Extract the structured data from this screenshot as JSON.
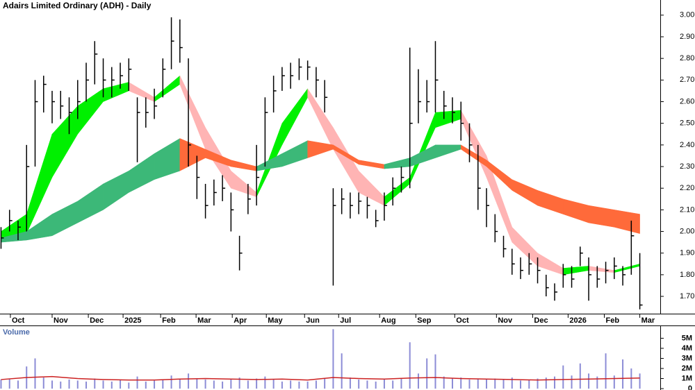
{
  "chart_data": [
    {
      "type": "ohlc",
      "title": "Adairs Limited Ordinary (ADH) - Daily",
      "x": [
        0,
        1,
        2,
        3,
        4,
        5,
        6,
        7,
        8,
        9,
        10,
        11,
        12,
        13,
        14,
        15,
        16,
        17,
        18,
        19,
        20,
        21,
        22,
        23,
        24,
        25,
        26,
        27,
        28,
        29,
        30,
        31,
        32,
        33,
        34,
        35,
        36,
        37,
        38,
        39,
        40,
        41,
        42,
        43,
        44,
        45,
        46,
        47,
        48,
        49,
        50,
        51,
        52,
        53,
        54,
        55,
        56,
        57,
        58,
        59,
        60,
        61,
        62,
        63,
        64,
        65,
        66,
        67,
        68,
        69,
        70,
        71,
        72,
        73,
        74,
        75
      ],
      "high": [
        2.02,
        2.1,
        2.05,
        2.4,
        2.7,
        2.72,
        2.65,
        2.65,
        2.62,
        2.7,
        2.78,
        2.88,
        2.8,
        2.76,
        2.78,
        2.8,
        2.62,
        2.62,
        2.66,
        2.8,
        2.99,
        2.98,
        2.8,
        2.35,
        2.22,
        2.24,
        2.26,
        2.18,
        1.98,
        2.22,
        2.4,
        2.62,
        2.72,
        2.76,
        2.78,
        2.8,
        2.79,
        2.76,
        2.7,
        2.2,
        2.2,
        2.18,
        2.18,
        2.16,
        2.1,
        2.18,
        2.25,
        2.3,
        2.85,
        2.75,
        2.7,
        2.88,
        2.65,
        2.62,
        2.6,
        2.5,
        2.4,
        2.2,
        2.08,
        1.98,
        1.92,
        1.88,
        1.9,
        1.88,
        1.8,
        1.76,
        1.85,
        1.84,
        1.93,
        1.88,
        1.84,
        1.86,
        1.88,
        1.84,
        2.05,
        1.9
      ],
      "low": [
        1.92,
        2.0,
        1.96,
        2.0,
        2.3,
        2.55,
        2.5,
        2.52,
        2.45,
        2.52,
        2.6,
        2.68,
        2.62,
        2.62,
        2.66,
        2.65,
        2.32,
        2.48,
        2.52,
        2.62,
        2.75,
        2.78,
        2.3,
        2.15,
        2.06,
        2.12,
        2.14,
        2.0,
        1.82,
        2.08,
        2.12,
        2.3,
        2.55,
        2.65,
        2.66,
        2.7,
        2.7,
        2.62,
        2.55,
        1.75,
        2.08,
        2.06,
        2.08,
        2.06,
        2.02,
        2.05,
        2.12,
        2.18,
        2.2,
        2.5,
        2.55,
        2.55,
        2.52,
        2.5,
        2.42,
        2.32,
        2.1,
        2.02,
        1.95,
        1.88,
        1.8,
        1.78,
        1.8,
        1.76,
        1.7,
        1.68,
        1.74,
        1.74,
        1.84,
        1.68,
        1.74,
        1.76,
        1.78,
        1.75,
        1.8,
        1.64
      ],
      "close": [
        1.97,
        2.05,
        2.02,
        2.3,
        2.6,
        2.68,
        2.6,
        2.58,
        2.55,
        2.6,
        2.7,
        2.82,
        2.7,
        2.7,
        2.72,
        2.75,
        2.55,
        2.55,
        2.58,
        2.75,
        2.88,
        2.85,
        2.4,
        2.25,
        2.12,
        2.18,
        2.2,
        2.1,
        1.9,
        2.15,
        2.25,
        2.55,
        2.65,
        2.72,
        2.72,
        2.76,
        2.76,
        2.7,
        2.62,
        2.12,
        2.15,
        2.12,
        2.14,
        2.12,
        2.05,
        2.12,
        2.2,
        2.25,
        2.5,
        2.6,
        2.6,
        2.7,
        2.58,
        2.55,
        2.5,
        2.4,
        2.2,
        2.12,
        2.0,
        1.92,
        1.85,
        1.82,
        1.85,
        1.82,
        1.74,
        1.72,
        1.8,
        1.78,
        1.9,
        1.8,
        1.78,
        1.82,
        1.84,
        1.8,
        1.98,
        1.66
      ],
      "color": "#000000",
      "bands": [
        {
          "x": [
            0,
            3,
            6,
            9,
            12,
            15,
            18,
            21,
            24,
            27,
            30,
            33,
            36,
            39,
            42,
            45,
            48,
            51,
            54,
            57,
            60,
            63,
            66,
            69,
            72,
            75
          ],
          "upper": [
            2.0,
            2.08,
            2.45,
            2.58,
            2.66,
            2.69,
            2.62,
            2.72,
            2.48,
            2.28,
            2.18,
            2.5,
            2.66,
            2.48,
            2.28,
            2.16,
            2.25,
            2.55,
            2.56,
            2.35,
            2.02,
            1.9,
            1.83,
            1.84,
            1.82,
            1.85
          ],
          "lower": [
            1.97,
            1.99,
            2.25,
            2.45,
            2.6,
            2.65,
            2.6,
            2.68,
            2.38,
            2.2,
            2.16,
            2.4,
            2.62,
            2.38,
            2.18,
            2.12,
            2.22,
            2.48,
            2.52,
            2.25,
            1.95,
            1.84,
            1.8,
            1.82,
            1.81,
            1.84
          ],
          "up_color": "#00f000",
          "down_color": "#ffb4b4"
        },
        {
          "x": [
            0,
            3,
            6,
            9,
            12,
            15,
            18,
            21,
            24,
            27,
            30,
            33,
            36,
            39,
            42,
            45,
            48,
            51,
            54,
            57,
            60,
            63,
            66,
            69,
            72,
            75
          ],
          "upper": [
            1.97,
            2.0,
            2.08,
            2.14,
            2.22,
            2.28,
            2.36,
            2.43,
            2.38,
            2.33,
            2.3,
            2.36,
            2.42,
            2.4,
            2.33,
            2.31,
            2.34,
            2.4,
            2.4,
            2.33,
            2.24,
            2.19,
            2.15,
            2.12,
            2.1,
            2.08
          ],
          "lower": [
            1.95,
            1.96,
            1.98,
            2.04,
            2.1,
            2.18,
            2.24,
            2.28,
            2.34,
            2.3,
            2.28,
            2.3,
            2.34,
            2.38,
            2.31,
            2.29,
            2.3,
            2.34,
            2.38,
            2.3,
            2.19,
            2.12,
            2.08,
            2.04,
            2.02,
            1.99
          ],
          "up_color": "#3cb878",
          "down_color": "#ff6a3a"
        }
      ],
      "xlim": [
        -0.12,
        77.4
      ],
      "ylim": [
        1.62,
        3.07
      ],
      "yticks": [
        {
          "value": 1.7,
          "label": "1.70"
        },
        {
          "value": 1.8,
          "label": "1.80"
        },
        {
          "value": 1.9,
          "label": "1.90"
        },
        {
          "value": 2.0,
          "label": "2.00"
        },
        {
          "value": 2.1,
          "label": "2.10"
        },
        {
          "value": 2.2,
          "label": "2.20"
        },
        {
          "value": 2.3,
          "label": "2.30"
        },
        {
          "value": 2.4,
          "label": "2.40"
        },
        {
          "value": 2.5,
          "label": "2.50"
        },
        {
          "value": 2.6,
          "label": "2.60"
        },
        {
          "value": 2.7,
          "label": "2.70"
        },
        {
          "value": 2.8,
          "label": "2.80"
        },
        {
          "value": 2.9,
          "label": "2.90"
        },
        {
          "value": 3.0,
          "label": "3.00"
        }
      ],
      "xticks": [
        {
          "value": 1.1,
          "label": "Oct"
        },
        {
          "value": 6.0,
          "label": "Nov"
        },
        {
          "value": 10.25,
          "label": "Dec"
        },
        {
          "value": 14.33,
          "label": "2025"
        },
        {
          "value": 18.74,
          "label": "Feb"
        },
        {
          "value": 22.9,
          "label": "Mar"
        },
        {
          "value": 27.15,
          "label": "Apr"
        },
        {
          "value": 31.15,
          "label": "May"
        },
        {
          "value": 35.64,
          "label": "Jun"
        },
        {
          "value": 39.64,
          "label": "Jul"
        },
        {
          "value": 44.45,
          "label": "Aug"
        },
        {
          "value": 48.7,
          "label": "Sep"
        },
        {
          "value": 53.27,
          "label": "Oct"
        },
        {
          "value": 58.17,
          "label": "Nov"
        },
        {
          "value": 62.42,
          "label": "Dec"
        },
        {
          "value": 66.58,
          "label": "2026"
        },
        {
          "value": 70.83,
          "label": "Feb"
        },
        {
          "value": 75.0,
          "label": "Mar"
        }
      ]
    },
    {
      "type": "volume",
      "title": "Volume",
      "x": [
        0,
        1,
        2,
        3,
        4,
        5,
        6,
        7,
        8,
        9,
        10,
        11,
        12,
        13,
        14,
        15,
        16,
        17,
        18,
        19,
        20,
        21,
        22,
        23,
        24,
        25,
        26,
        27,
        28,
        29,
        30,
        31,
        32,
        33,
        34,
        35,
        36,
        37,
        38,
        39,
        40,
        41,
        42,
        43,
        44,
        45,
        46,
        47,
        48,
        49,
        50,
        51,
        52,
        53,
        54,
        55,
        56,
        57,
        58,
        59,
        60,
        61,
        62,
        63,
        64,
        65,
        66,
        67,
        68,
        69,
        70,
        71,
        72,
        73,
        74,
        75
      ],
      "values": [
        900000,
        1000000,
        800000,
        2200000,
        3000000,
        1100000,
        800000,
        700000,
        900000,
        800000,
        700000,
        1000000,
        800000,
        700000,
        900000,
        600000,
        1200000,
        700000,
        800000,
        900000,
        1300000,
        1000000,
        1500000,
        1000000,
        900000,
        800000,
        700000,
        900000,
        1100000,
        800000,
        1000000,
        1200000,
        900000,
        700000,
        800000,
        700000,
        700000,
        800000,
        1000000,
        5900000,
        3500000,
        1100000,
        900000,
        800000,
        700000,
        900000,
        800000,
        1000000,
        4600000,
        1500000,
        3000000,
        3400000,
        1200000,
        1000000,
        1100000,
        900000,
        1000000,
        900000,
        1000000,
        900000,
        1100000,
        800000,
        900000,
        1000000,
        1100000,
        1200000,
        2300000,
        1300000,
        2500000,
        1500000,
        1200000,
        3500000,
        1300000,
        2900000,
        2000000,
        1500000
      ],
      "color": "#8c8cd6",
      "ma_x": [
        0,
        3,
        6,
        9,
        12,
        15,
        18,
        21,
        24,
        27,
        30,
        33,
        36,
        39,
        42,
        45,
        48,
        51,
        54,
        57,
        60,
        63,
        66,
        69,
        72,
        75
      ],
      "ma": [
        900000,
        1100000,
        1200000,
        1000000,
        900000,
        850000,
        850000,
        950000,
        1000000,
        950000,
        900000,
        950000,
        850000,
        1100000,
        1000000,
        950000,
        1050000,
        1100000,
        1000000,
        950000,
        900000,
        850000,
        900000,
        950000,
        1000000,
        1050000
      ],
      "ma_color": "#cc2020",
      "xlim": [
        -0.12,
        77.4
      ],
      "ylim": [
        0,
        6200000
      ],
      "yticks": [
        0,
        {
          "value": 1000000,
          "label": "1M"
        },
        {
          "value": 2000000,
          "label": "2M"
        },
        {
          "value": 3000000,
          "label": "3M"
        },
        {
          "value": 4000000,
          "label": "4M"
        },
        {
          "value": 5000000,
          "label": "5M"
        }
      ]
    }
  ]
}
